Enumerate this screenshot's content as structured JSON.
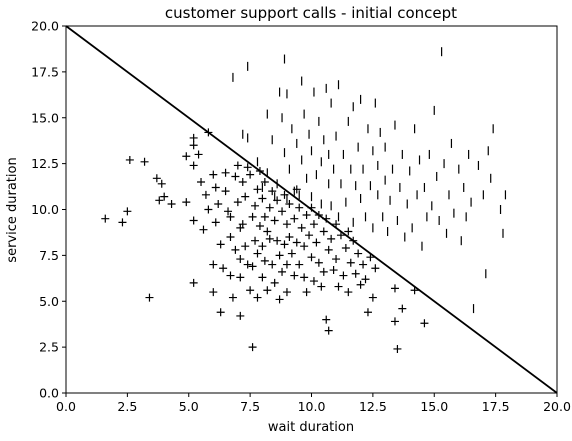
{
  "chart_data": {
    "type": "scatter",
    "title": "customer support calls - initial concept",
    "xlabel": "wait duration",
    "ylabel": "service duration",
    "xlim": [
      0.0,
      20.0
    ],
    "ylim": [
      0.0,
      20.0
    ],
    "xticks": [
      "0.0",
      "2.5",
      "5.0",
      "7.5",
      "10.0",
      "12.5",
      "15.0",
      "17.5",
      "20.0"
    ],
    "yticks": [
      "0.0",
      "2.5",
      "5.0",
      "7.5",
      "10.0",
      "12.5",
      "15.0",
      "17.5",
      "20.0"
    ],
    "xtick_values": [
      0,
      2.5,
      5,
      7.5,
      10,
      12.5,
      15,
      17.5,
      20
    ],
    "ytick_values": [
      0,
      2.5,
      5,
      7.5,
      10,
      12.5,
      15,
      17.5,
      20
    ],
    "grid": false,
    "legend": "none",
    "marker_color": "#000000",
    "boundary_line": {
      "x": [
        0.0,
        20.0
      ],
      "y": [
        20.0,
        0.0
      ]
    },
    "series": [
      {
        "marker": "plus",
        "points": [
          [
            1.6,
            9.5
          ],
          [
            2.3,
            9.3
          ],
          [
            2.5,
            9.9
          ],
          [
            2.6,
            12.7
          ],
          [
            3.2,
            12.6
          ],
          [
            3.4,
            5.2
          ],
          [
            3.7,
            11.7
          ],
          [
            3.9,
            11.4
          ],
          [
            3.8,
            10.5
          ],
          [
            4.0,
            10.7
          ],
          [
            4.3,
            10.3
          ],
          [
            4.9,
            12.9
          ],
          [
            4.9,
            10.4
          ],
          [
            5.2,
            13.9
          ],
          [
            5.2,
            13.5
          ],
          [
            5.2,
            12.4
          ],
          [
            5.2,
            9.4
          ],
          [
            5.2,
            6.0
          ],
          [
            5.4,
            13.0
          ],
          [
            5.5,
            11.5
          ],
          [
            5.6,
            8.9
          ],
          [
            5.7,
            10.8
          ],
          [
            5.8,
            14.2
          ],
          [
            5.8,
            10.0
          ],
          [
            6.0,
            11.9
          ],
          [
            6.1,
            11.2
          ],
          [
            6.1,
            9.3
          ],
          [
            6.0,
            7.0
          ],
          [
            6.0,
            5.5
          ],
          [
            6.2,
            10.3
          ],
          [
            6.3,
            8.1
          ],
          [
            6.3,
            4.4
          ],
          [
            6.4,
            6.8
          ],
          [
            6.5,
            12.0
          ],
          [
            6.5,
            11.0
          ],
          [
            6.6,
            9.9
          ],
          [
            6.7,
            9.6
          ],
          [
            6.7,
            8.5
          ],
          [
            6.7,
            6.4
          ],
          [
            6.8,
            5.2
          ],
          [
            6.9,
            7.8
          ],
          [
            6.9,
            11.8
          ],
          [
            7.0,
            12.4
          ],
          [
            7.0,
            10.4
          ],
          [
            7.1,
            9.0
          ],
          [
            7.1,
            7.3
          ],
          [
            7.1,
            6.3
          ],
          [
            7.1,
            4.2
          ],
          [
            7.2,
            11.5
          ],
          [
            7.2,
            9.2
          ],
          [
            7.3,
            10.7
          ],
          [
            7.3,
            8.0
          ],
          [
            7.4,
            12.3
          ],
          [
            7.4,
            7.0
          ],
          [
            7.5,
            5.6
          ],
          [
            7.5,
            11.9
          ],
          [
            7.6,
            9.6
          ],
          [
            7.6,
            6.9
          ],
          [
            7.6,
            2.5
          ],
          [
            7.7,
            10.2
          ],
          [
            7.7,
            8.3
          ],
          [
            7.8,
            11.1
          ],
          [
            7.8,
            7.6
          ],
          [
            7.8,
            5.2
          ],
          [
            7.9,
            12.1
          ],
          [
            7.9,
            9.1
          ],
          [
            8.0,
            10.6
          ],
          [
            8.0,
            8.0
          ],
          [
            8.0,
            6.3
          ],
          [
            8.1,
            11.5
          ],
          [
            8.1,
            9.6
          ],
          [
            8.1,
            7.2
          ],
          [
            8.2,
            8.8
          ],
          [
            8.2,
            5.6
          ],
          [
            8.3,
            10.1
          ],
          [
            8.3,
            8.4
          ],
          [
            8.4,
            11.0
          ],
          [
            8.4,
            7.0
          ],
          [
            8.5,
            9.4
          ],
          [
            8.5,
            6.0
          ],
          [
            8.6,
            10.5
          ],
          [
            8.6,
            8.3
          ],
          [
            8.7,
            7.5
          ],
          [
            8.7,
            5.1
          ],
          [
            8.8,
            9.9
          ],
          [
            8.8,
            6.6
          ],
          [
            8.9,
            8.1
          ],
          [
            8.9,
            10.8
          ],
          [
            9.0,
            9.2
          ],
          [
            9.0,
            7.0
          ],
          [
            9.0,
            5.5
          ],
          [
            9.1,
            10.3
          ],
          [
            9.1,
            8.5
          ],
          [
            9.2,
            7.6
          ],
          [
            9.3,
            9.5
          ],
          [
            9.3,
            6.4
          ],
          [
            9.4,
            11.1
          ],
          [
            9.4,
            8.2
          ],
          [
            9.5,
            10.1
          ],
          [
            9.5,
            7.0
          ],
          [
            9.6,
            9.0
          ],
          [
            9.7,
            8.0
          ],
          [
            9.7,
            6.3
          ],
          [
            9.8,
            9.7
          ],
          [
            9.8,
            5.5
          ],
          [
            9.9,
            8.6
          ],
          [
            10.0,
            7.4
          ],
          [
            10.0,
            10.1
          ],
          [
            10.1,
            9.2
          ],
          [
            10.1,
            6.1
          ],
          [
            10.2,
            8.2
          ],
          [
            10.3,
            9.7
          ],
          [
            10.3,
            7.1
          ],
          [
            10.4,
            5.8
          ],
          [
            10.5,
            8.8
          ],
          [
            10.5,
            6.6
          ],
          [
            10.6,
            9.5
          ],
          [
            10.6,
            4.0
          ],
          [
            10.7,
            7.8
          ],
          [
            10.7,
            3.4
          ],
          [
            10.8,
            8.4
          ],
          [
            10.9,
            6.7
          ],
          [
            11.0,
            9.2
          ],
          [
            11.0,
            7.3
          ],
          [
            11.1,
            5.8
          ],
          [
            11.2,
            8.6
          ],
          [
            11.3,
            6.4
          ],
          [
            11.4,
            7.9
          ],
          [
            11.5,
            8.8
          ],
          [
            11.5,
            5.5
          ],
          [
            11.6,
            7.1
          ],
          [
            11.7,
            8.3
          ],
          [
            11.8,
            6.5
          ],
          [
            11.9,
            7.6
          ],
          [
            12.0,
            5.9
          ],
          [
            12.1,
            7.0
          ],
          [
            12.2,
            6.2
          ],
          [
            12.3,
            4.4
          ],
          [
            12.4,
            7.4
          ],
          [
            12.5,
            5.2
          ],
          [
            12.6,
            6.8
          ],
          [
            13.4,
            5.7
          ],
          [
            13.4,
            3.9
          ],
          [
            13.5,
            2.4
          ],
          [
            13.7,
            4.6
          ],
          [
            14.2,
            5.6
          ],
          [
            14.6,
            3.8
          ]
        ]
      },
      {
        "marker": "vline",
        "points": [
          [
            6.8,
            17.2
          ],
          [
            7.2,
            14.1
          ],
          [
            7.4,
            17.8
          ],
          [
            7.4,
            13.9
          ],
          [
            7.8,
            12.6
          ],
          [
            8.0,
            11.2
          ],
          [
            8.2,
            12.0
          ],
          [
            8.2,
            15.2
          ],
          [
            8.4,
            13.8
          ],
          [
            8.5,
            10.7
          ],
          [
            8.6,
            11.4
          ],
          [
            8.7,
            16.4
          ],
          [
            8.8,
            15.0
          ],
          [
            8.9,
            18.2
          ],
          [
            8.9,
            13.1
          ],
          [
            9.0,
            10.6
          ],
          [
            9.0,
            16.3
          ],
          [
            9.1,
            12.2
          ],
          [
            9.2,
            14.4
          ],
          [
            9.3,
            11.0
          ],
          [
            9.4,
            13.6
          ],
          [
            9.5,
            10.8
          ],
          [
            9.6,
            12.7
          ],
          [
            9.6,
            17.0
          ],
          [
            9.7,
            15.2
          ],
          [
            9.8,
            11.7
          ],
          [
            9.9,
            14.1
          ],
          [
            10.0,
            10.7
          ],
          [
            10.0,
            13.2
          ],
          [
            10.1,
            16.4
          ],
          [
            10.2,
            11.9
          ],
          [
            10.3,
            14.8
          ],
          [
            10.4,
            12.6
          ],
          [
            10.4,
            10.3
          ],
          [
            10.5,
            13.8
          ],
          [
            10.6,
            16.6
          ],
          [
            10.7,
            11.4
          ],
          [
            10.7,
            13.0
          ],
          [
            10.8,
            10.2
          ],
          [
            10.8,
            15.8
          ],
          [
            10.9,
            12.2
          ],
          [
            11.0,
            14.0
          ],
          [
            11.1,
            9.6
          ],
          [
            11.1,
            16.8
          ],
          [
            11.2,
            11.4
          ],
          [
            11.3,
            13.0
          ],
          [
            11.4,
            10.4
          ],
          [
            11.5,
            14.8
          ],
          [
            11.6,
            12.2
          ],
          [
            11.7,
            9.3
          ],
          [
            11.7,
            15.6
          ],
          [
            11.8,
            11.3
          ],
          [
            11.9,
            13.4
          ],
          [
            12.0,
            10.6
          ],
          [
            12.0,
            16.0
          ],
          [
            12.1,
            12.2
          ],
          [
            12.2,
            9.6
          ],
          [
            12.3,
            14.4
          ],
          [
            12.4,
            11.3
          ],
          [
            12.5,
            13.2
          ],
          [
            12.5,
            9.0
          ],
          [
            12.6,
            15.8
          ],
          [
            12.7,
            10.8
          ],
          [
            12.7,
            12.4
          ],
          [
            12.8,
            14.2
          ],
          [
            12.9,
            9.6
          ],
          [
            13.0,
            11.6
          ],
          [
            13.0,
            13.4
          ],
          [
            13.1,
            8.8
          ],
          [
            13.2,
            10.5
          ],
          [
            13.3,
            12.2
          ],
          [
            13.4,
            14.6
          ],
          [
            13.5,
            9.4
          ],
          [
            13.6,
            11.2
          ],
          [
            13.7,
            13.0
          ],
          [
            13.8,
            8.5
          ],
          [
            13.9,
            10.3
          ],
          [
            14.0,
            12.1
          ],
          [
            14.1,
            9.0
          ],
          [
            14.2,
            14.4
          ],
          [
            14.3,
            10.8
          ],
          [
            14.4,
            12.7
          ],
          [
            14.5,
            8.0
          ],
          [
            14.6,
            11.2
          ],
          [
            14.7,
            9.6
          ],
          [
            14.8,
            13.0
          ],
          [
            14.9,
            10.2
          ],
          [
            15.0,
            15.4
          ],
          [
            15.1,
            11.8
          ],
          [
            15.2,
            9.4
          ],
          [
            15.3,
            18.6
          ],
          [
            15.4,
            12.5
          ],
          [
            15.5,
            8.7
          ],
          [
            15.6,
            10.8
          ],
          [
            15.7,
            13.6
          ],
          [
            15.8,
            9.8
          ],
          [
            16.0,
            12.2
          ],
          [
            16.1,
            8.3
          ],
          [
            16.2,
            11.2
          ],
          [
            16.3,
            9.6
          ],
          [
            16.4,
            13.0
          ],
          [
            16.5,
            10.4
          ],
          [
            16.6,
            4.6
          ],
          [
            16.8,
            12.4
          ],
          [
            17.0,
            10.8
          ],
          [
            17.1,
            6.5
          ],
          [
            17.2,
            13.2
          ],
          [
            17.3,
            11.7
          ],
          [
            17.4,
            14.4
          ],
          [
            17.7,
            10.0
          ],
          [
            17.8,
            8.7
          ],
          [
            17.9,
            10.8
          ]
        ]
      }
    ]
  }
}
